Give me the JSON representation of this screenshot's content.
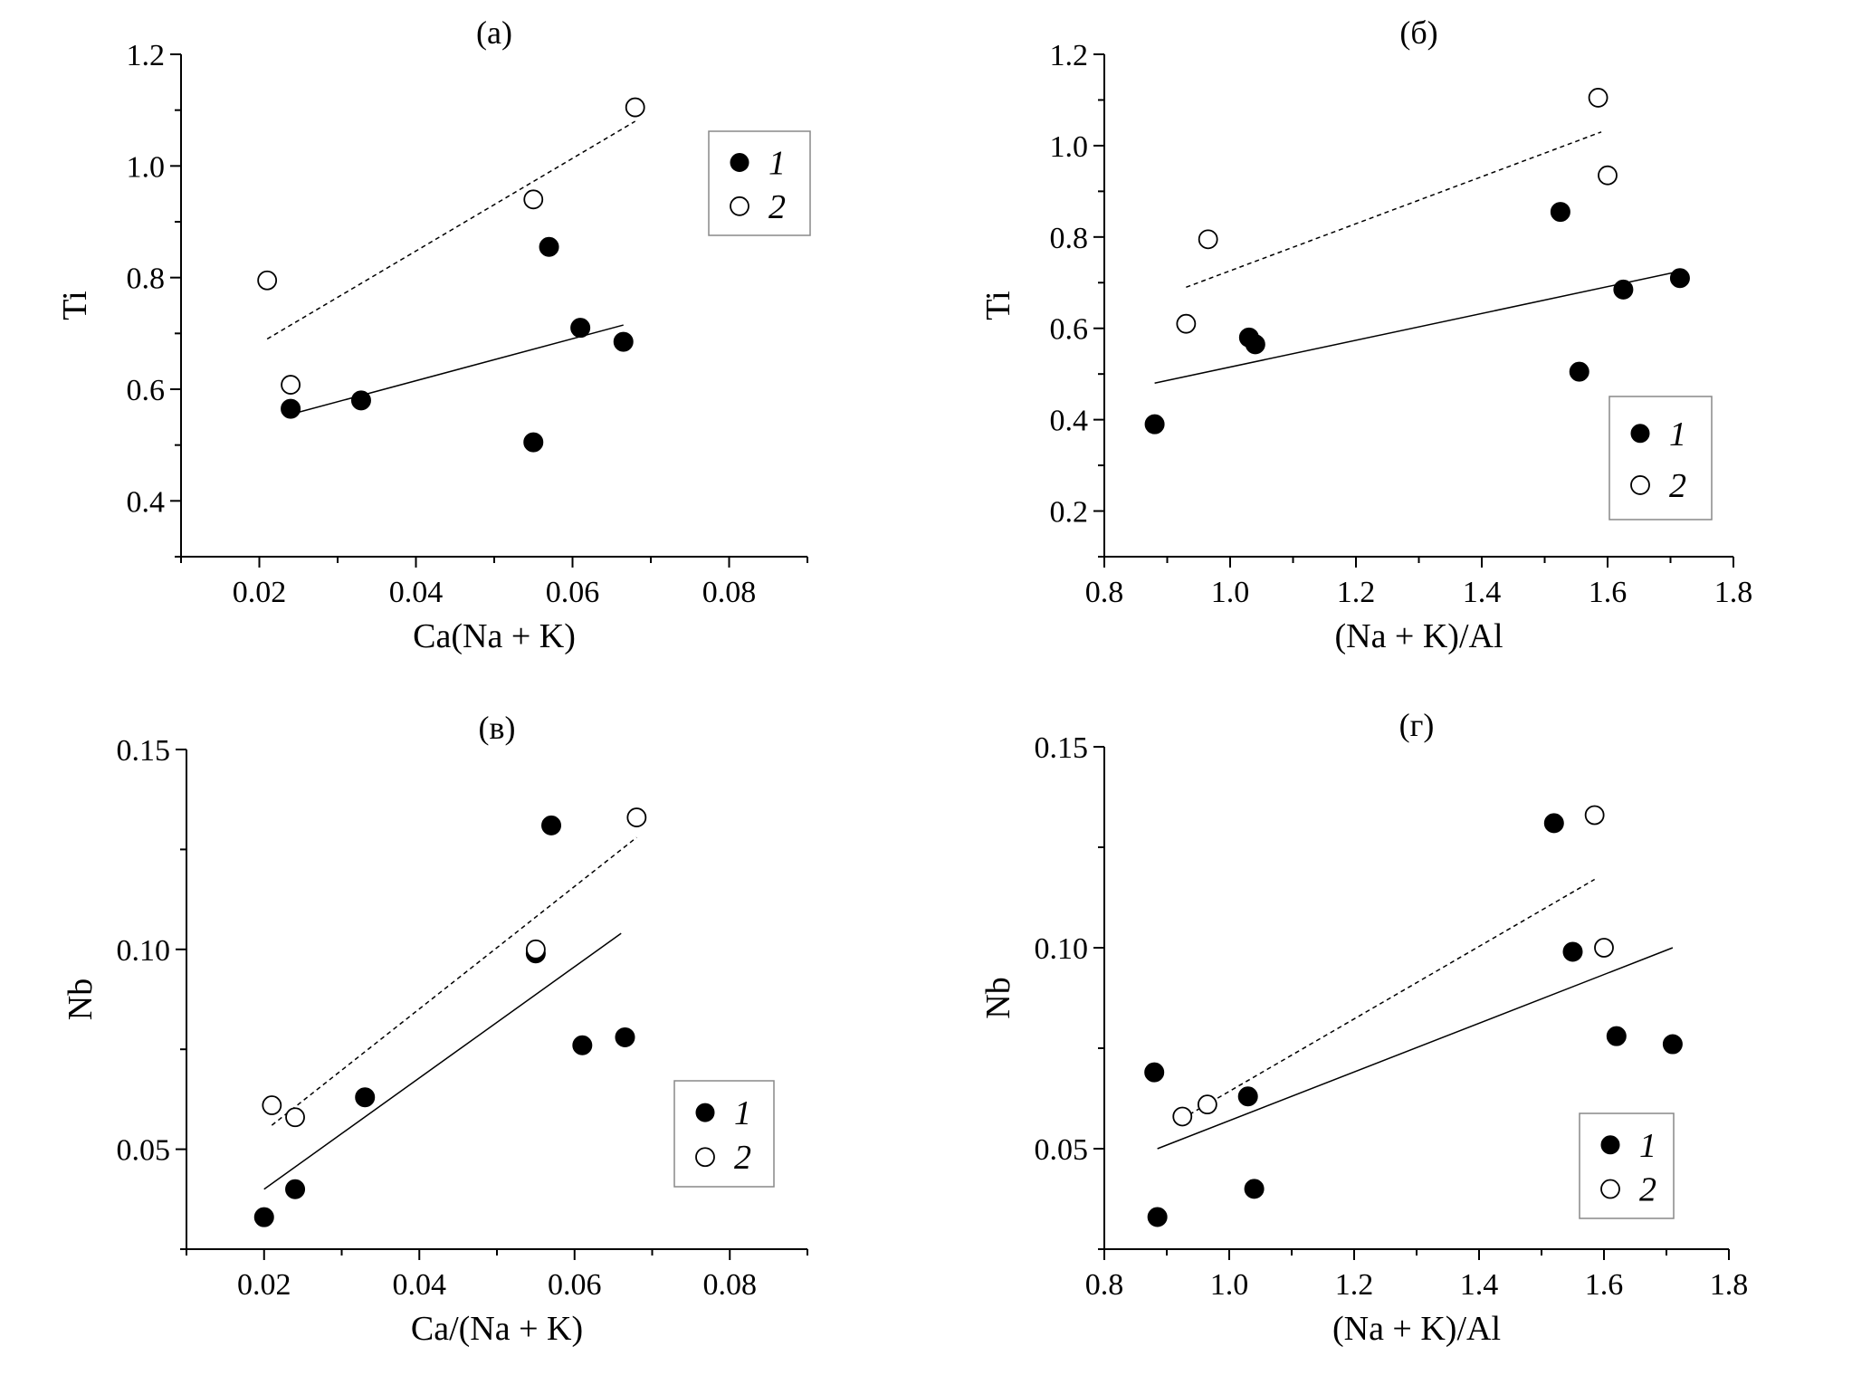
{
  "chart_data": [
    {
      "type": "scatter",
      "panel_label": "(а)",
      "xlabel": "Ca(Na + K)",
      "ylabel": "Ti",
      "xlim": [
        0.01,
        0.09
      ],
      "ylim": [
        0.3,
        1.2
      ],
      "xticks": [
        "0.02",
        "0.04",
        "0.06",
        "0.08"
      ],
      "yticks": [
        "0.4",
        "0.6",
        "0.8",
        "1.0",
        "1.2"
      ],
      "legend": {
        "position": "top-right",
        "entries": [
          "1",
          "2"
        ]
      },
      "series": [
        {
          "name": "1",
          "marker": "filled",
          "x": [
            0.024,
            0.033,
            0.055,
            0.057,
            0.061,
            0.0665
          ],
          "y": [
            0.565,
            0.58,
            0.505,
            0.855,
            0.71,
            0.685
          ],
          "trend": {
            "style": "solid",
            "x": [
              0.024,
              0.0665
            ],
            "y": [
              0.555,
              0.715
            ]
          }
        },
        {
          "name": "2",
          "marker": "open",
          "x": [
            0.021,
            0.024,
            0.055,
            0.068
          ],
          "y": [
            0.795,
            0.608,
            0.94,
            1.105
          ],
          "trend": {
            "style": "dashed",
            "x": [
              0.021,
              0.068
            ],
            "y": [
              0.69,
              1.08
            ]
          }
        }
      ]
    },
    {
      "type": "scatter",
      "panel_label": "(б)",
      "xlabel": "(Na + K)/Al",
      "ylabel": "Ti",
      "xlim": [
        0.8,
        1.8
      ],
      "ylim": [
        0.1,
        1.2
      ],
      "xticks": [
        "0.8",
        "1.0",
        "1.2",
        "1.4",
        "1.6",
        "1.8"
      ],
      "yticks": [
        "0.2",
        "0.4",
        "0.6",
        "0.8",
        "1.0",
        "1.2"
      ],
      "legend": {
        "position": "bottom-right",
        "entries": [
          "1",
          "2"
        ]
      },
      "series": [
        {
          "name": "1",
          "marker": "filled",
          "x": [
            0.88,
            1.03,
            1.04,
            1.525,
            1.555,
            1.625,
            1.715
          ],
          "y": [
            0.39,
            0.58,
            0.565,
            0.855,
            0.505,
            0.685,
            0.71
          ],
          "trend": {
            "style": "solid",
            "x": [
              0.88,
              1.715
            ],
            "y": [
              0.48,
              0.725
            ]
          }
        },
        {
          "name": "2",
          "marker": "open",
          "x": [
            0.93,
            0.965,
            1.585,
            1.6
          ],
          "y": [
            0.61,
            0.795,
            1.105,
            0.935
          ],
          "trend": {
            "style": "dashed",
            "x": [
              0.93,
              1.59
            ],
            "y": [
              0.69,
              1.03
            ]
          }
        }
      ]
    },
    {
      "type": "scatter",
      "panel_label": "(в)",
      "xlabel": "Ca/(Na + K)",
      "ylabel": "Nb",
      "xlim": [
        0.01,
        0.09
      ],
      "ylim": [
        0.025,
        0.15
      ],
      "xticks": [
        "0.02",
        "0.04",
        "0.06",
        "0.08"
      ],
      "yticks": [
        "0.05",
        "0.10",
        "0.15"
      ],
      "legend": {
        "position": "bottom-right",
        "entries": [
          "1",
          "2"
        ]
      },
      "series": [
        {
          "name": "1",
          "marker": "filled",
          "x": [
            0.02,
            0.024,
            0.033,
            0.055,
            0.057,
            0.061,
            0.0665
          ],
          "y": [
            0.033,
            0.04,
            0.063,
            0.099,
            0.131,
            0.076,
            0.078
          ],
          "trend": {
            "style": "solid",
            "x": [
              0.02,
              0.066
            ],
            "y": [
              0.04,
              0.104
            ]
          }
        },
        {
          "name": "2",
          "marker": "open",
          "x": [
            0.021,
            0.024,
            0.055,
            0.068
          ],
          "y": [
            0.061,
            0.058,
            0.1,
            0.133
          ],
          "trend": {
            "style": "dashed",
            "x": [
              0.021,
              0.068
            ],
            "y": [
              0.056,
              0.128
            ]
          }
        }
      ]
    },
    {
      "type": "scatter",
      "panel_label": "(г)",
      "xlabel": "(Na + K)/Al",
      "ylabel": "Nb",
      "xlim": [
        0.8,
        1.8
      ],
      "ylim": [
        0.025,
        0.15
      ],
      "xticks": [
        "0.8",
        "1.0",
        "1.2",
        "1.4",
        "1.6",
        "1.8"
      ],
      "yticks": [
        "0.05",
        "0.10",
        "0.15"
      ],
      "legend": {
        "position": "bottom-right",
        "entries": [
          "1",
          "2"
        ]
      },
      "series": [
        {
          "name": "1",
          "marker": "filled",
          "x": [
            0.88,
            0.885,
            1.03,
            1.04,
            1.52,
            1.55,
            1.62,
            1.71
          ],
          "y": [
            0.069,
            0.033,
            0.063,
            0.04,
            0.131,
            0.099,
            0.078,
            0.076
          ],
          "trend": {
            "style": "solid",
            "x": [
              0.885,
              1.71
            ],
            "y": [
              0.05,
              0.1
            ]
          }
        },
        {
          "name": "2",
          "marker": "open",
          "x": [
            0.925,
            0.965,
            1.585,
            1.6
          ],
          "y": [
            0.058,
            0.061,
            0.133,
            0.1
          ],
          "trend": {
            "style": "dashed",
            "x": [
              0.925,
              1.585
            ],
            "y": [
              0.0575,
              0.117
            ]
          }
        }
      ]
    }
  ]
}
